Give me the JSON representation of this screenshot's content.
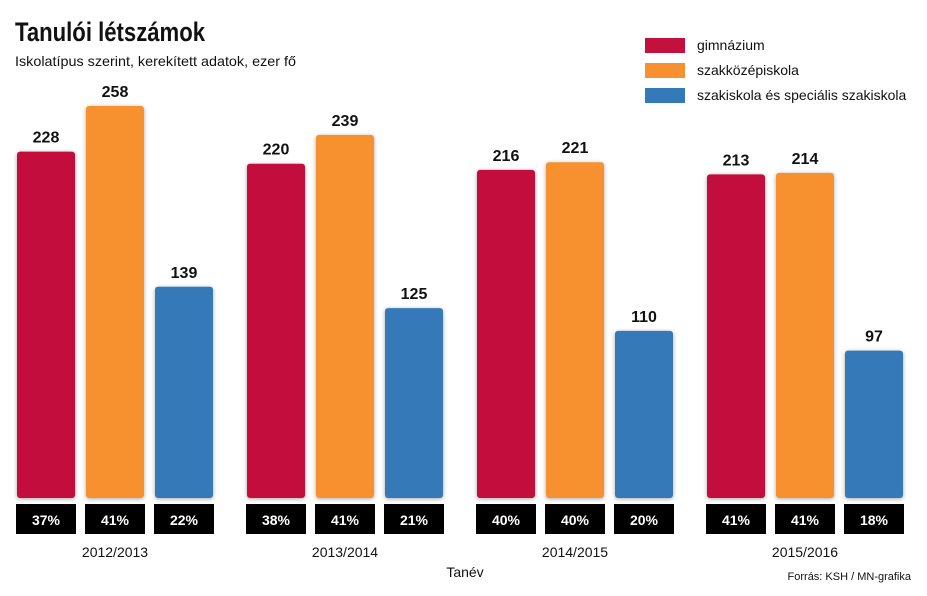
{
  "chart_data": {
    "type": "bar",
    "title": "Tanulói létszámok",
    "subtitle": "Iskolatípus szerint, kerekített adatok, ezer fő",
    "xlabel": "Tanév",
    "ylabel": "",
    "ylim": [
      0,
      258
    ],
    "grid": false,
    "legend_position": "top-right",
    "categories": [
      "2012/2013",
      "2013/2014",
      "2014/2015",
      "2015/2016"
    ],
    "series": [
      {
        "name": "gimnázium",
        "color": "#c3103c",
        "values": [
          228,
          220,
          216,
          213
        ],
        "shares": [
          "37%",
          "38%",
          "40%",
          "41%"
        ]
      },
      {
        "name": "szakközépiskola",
        "color": "#f7902f",
        "values": [
          258,
          239,
          221,
          214
        ],
        "shares": [
          "41%",
          "41%",
          "40%",
          "41%"
        ]
      },
      {
        "name": "szakiskola és speciális szakiskola",
        "color": "#3479b8",
        "values": [
          139,
          125,
          110,
          97
        ],
        "shares": [
          "22%",
          "21%",
          "20%",
          "18%"
        ]
      }
    ],
    "source": "Forrás: KSH / MN-grafika"
  }
}
